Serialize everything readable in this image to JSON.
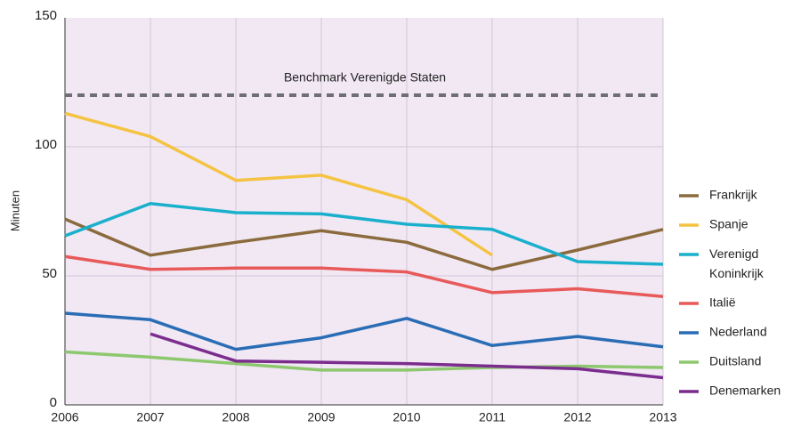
{
  "chart_data": {
    "type": "line",
    "y_label": "Minuten",
    "x": [
      "2006",
      "2007",
      "2008",
      "2009",
      "2010",
      "2011",
      "2012",
      "2013"
    ],
    "ylim": [
      0,
      150
    ],
    "yticks": [
      0,
      50,
      100,
      150
    ],
    "grid": true,
    "legend": "right",
    "benchmark": {
      "label": "Benchmark Verenigde Staten",
      "value": 120,
      "color": "#6e6e78"
    },
    "series": [
      {
        "name": "Frankrijk",
        "color": "#8b6b3d",
        "values": [
          72,
          58,
          63,
          67.5,
          63,
          52.5,
          60,
          68
        ]
      },
      {
        "name": "Spanje",
        "color": "#f5c342",
        "values": [
          113,
          104,
          87,
          89,
          79.5,
          58,
          null,
          null
        ]
      },
      {
        "name": "Verenigd Koninkrijk",
        "color": "#1ab0cc",
        "values": [
          65.5,
          78,
          74.5,
          74,
          70,
          68,
          55.5,
          54.5
        ]
      },
      {
        "name": "Italië",
        "color": "#e85a5a",
        "values": [
          57.5,
          52.5,
          53,
          53,
          51.5,
          43.5,
          45,
          42
        ]
      },
      {
        "name": "Nederland",
        "color": "#2a6db5",
        "values": [
          35.5,
          33,
          21.5,
          26,
          33.5,
          23,
          26.5,
          22.5
        ]
      },
      {
        "name": "Duitsland",
        "color": "#8dc86e",
        "values": [
          20.5,
          18.5,
          16,
          13.5,
          13.5,
          14.5,
          15,
          14.5
        ]
      },
      {
        "name": "Denemarken",
        "color": "#7b2d8e",
        "values": [
          null,
          27.5,
          17,
          16.5,
          16,
          15,
          14,
          10.5
        ]
      }
    ]
  }
}
